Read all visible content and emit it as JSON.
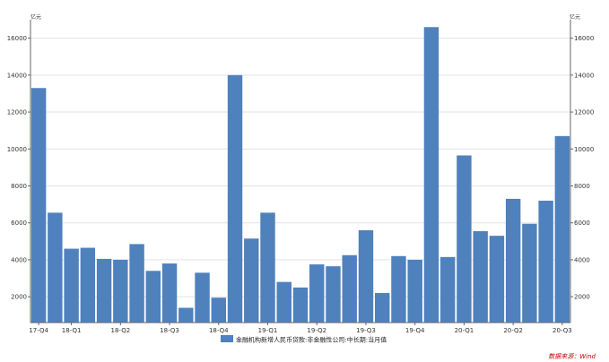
{
  "chart_data": {
    "type": "bar",
    "y_unit_left": "亿元",
    "y_unit_right": "亿元",
    "series": [
      {
        "name": "金融机构新增人民币贷款:非金融性公司:中长期:当月值",
        "color": "#4f81bd",
        "values": [
          13300,
          6550,
          4600,
          4650,
          4050,
          4000,
          4850,
          3400,
          3800,
          1400,
          3300,
          1950,
          14000,
          5150,
          6550,
          2800,
          2500,
          3750,
          3650,
          4250,
          5600,
          2200,
          4200,
          4000,
          16600,
          4150,
          9650,
          5550,
          5300,
          7300,
          5950,
          7200,
          10700
        ]
      }
    ],
    "x_tick_labels": [
      {
        "index": 0,
        "label": "17-Q4"
      },
      {
        "index": 2,
        "label": "18-Q1"
      },
      {
        "index": 5,
        "label": "18-Q2"
      },
      {
        "index": 8,
        "label": "18-Q3"
      },
      {
        "index": 11,
        "label": "18-Q4"
      },
      {
        "index": 14,
        "label": "19-Q1"
      },
      {
        "index": 17,
        "label": "19-Q2"
      },
      {
        "index": 20,
        "label": "19-Q3"
      },
      {
        "index": 23,
        "label": "19-Q4"
      },
      {
        "index": 26,
        "label": "20-Q1"
      },
      {
        "index": 29,
        "label": "20-Q2"
      },
      {
        "index": 32,
        "label": "20-Q3"
      }
    ],
    "ylim": [
      600,
      17000
    ],
    "yticks": [
      2000,
      4000,
      6000,
      8000,
      10000,
      12000,
      14000,
      16000
    ],
    "grid": true,
    "legend_position": "bottom-center",
    "source_text": "数据来源：Wind",
    "source_color": "#c00000"
  }
}
